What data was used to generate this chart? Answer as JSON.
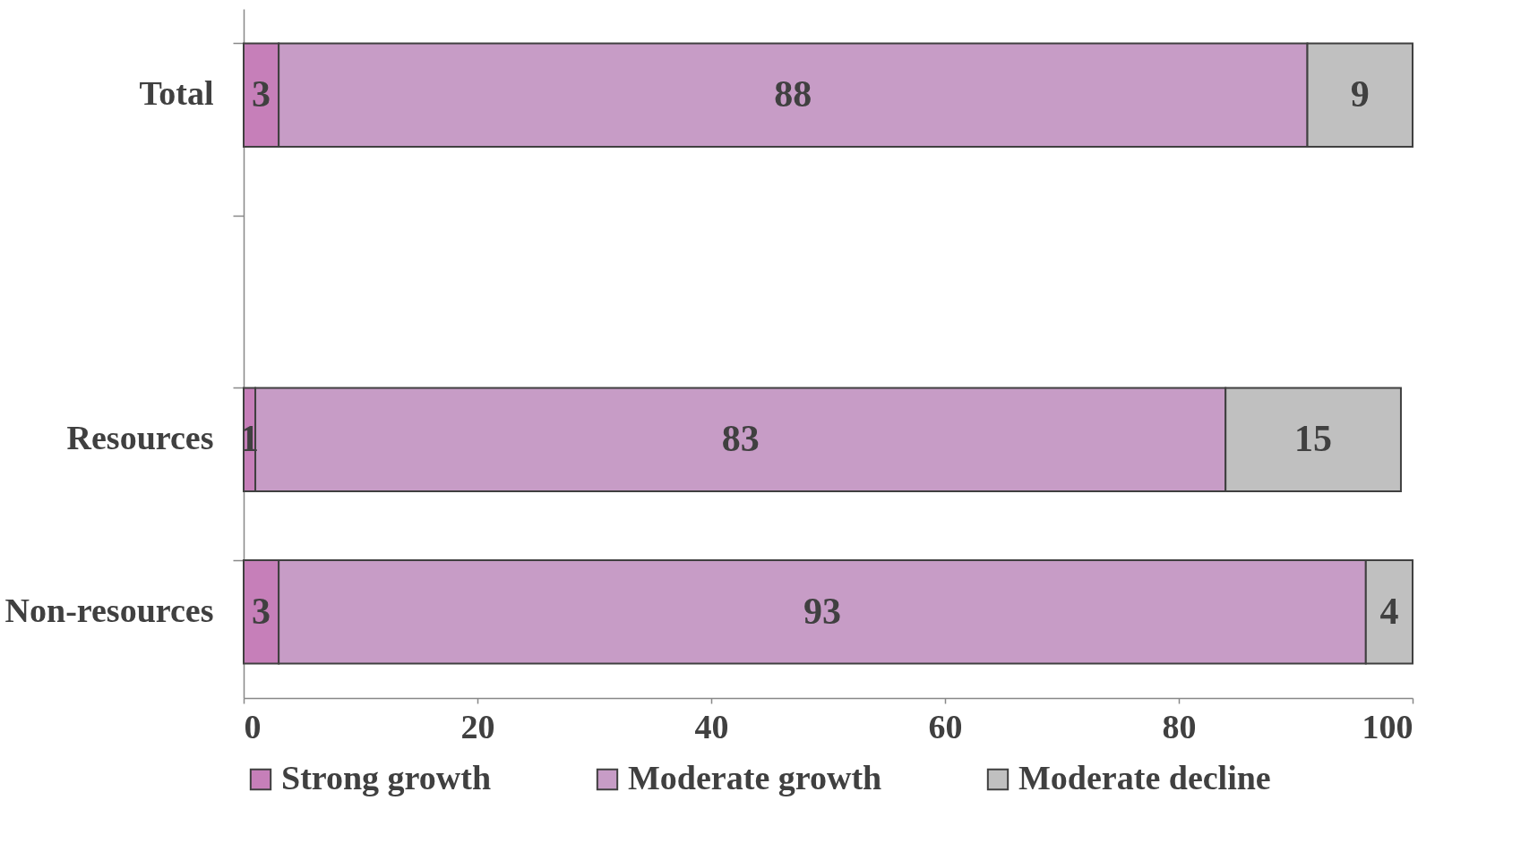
{
  "chart_data": {
    "type": "bar",
    "orientation": "horizontal",
    "stacked": true,
    "data_labels": true,
    "categories": [
      "Total",
      null,
      "Resources",
      "Non-resources"
    ],
    "series": [
      {
        "name": "Strong growth",
        "color": "#c67fb9",
        "values": [
          3,
          null,
          1,
          3
        ]
      },
      {
        "name": "Moderate growth",
        "color": "#c79cc6",
        "values": [
          88,
          null,
          83,
          93
        ]
      },
      {
        "name": "Moderate decline",
        "color": "#c0c0c0",
        "values": [
          9,
          null,
          15,
          4
        ]
      }
    ],
    "xlim": [
      0,
      100
    ],
    "xticks": [
      0,
      20,
      40,
      60,
      80,
      100
    ],
    "grid": false,
    "legend": "bottom"
  }
}
